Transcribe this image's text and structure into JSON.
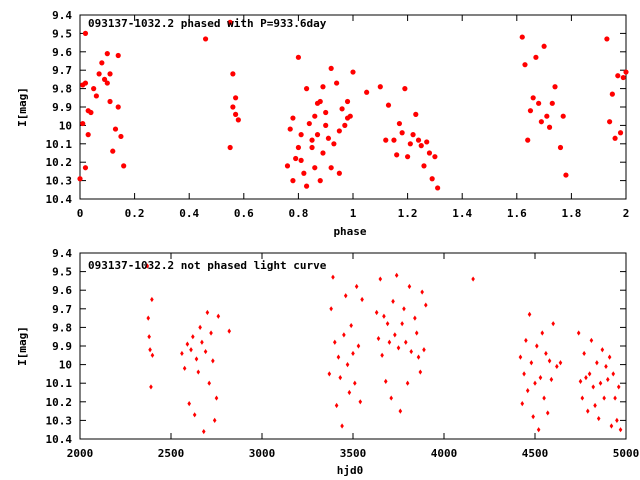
{
  "chart_data": [
    {
      "type": "scatter",
      "title": "093137-1032.2 phased with P=933.6day",
      "xlabel": "phase",
      "ylabel": "I[mag]",
      "xlim": [
        0,
        2
      ],
      "ylim": [
        10.4,
        9.4
      ],
      "y_inverted": true,
      "xticks": [
        "0",
        "0.2",
        "0.4",
        "0.6",
        "0.8",
        "1",
        "1.2",
        "1.4",
        "1.6",
        "1.8",
        "2"
      ],
      "xtick_values": [
        0,
        0.2,
        0.4,
        0.6,
        0.8,
        1,
        1.2,
        1.4,
        1.6,
        1.8,
        2
      ],
      "yticks": [
        "9.4",
        "9.5",
        "9.6",
        "9.7",
        "9.8",
        "9.9",
        "10",
        "10.1",
        "10.2",
        "10.3",
        "10.4"
      ],
      "ytick_values": [
        9.4,
        9.5,
        9.6,
        9.7,
        9.8,
        9.9,
        10.0,
        10.1,
        10.2,
        10.3,
        10.4
      ],
      "grid": false,
      "marker": "filled-circle",
      "color": "#ff0000",
      "x": [
        0.0,
        0.01,
        0.01,
        0.02,
        0.02,
        0.02,
        0.03,
        0.03,
        0.04,
        0.05,
        0.06,
        0.07,
        0.08,
        0.09,
        0.1,
        0.1,
        0.11,
        0.11,
        0.12,
        0.13,
        0.14,
        0.14,
        0.15,
        0.16,
        0.46,
        0.55,
        0.55,
        0.56,
        0.56,
        0.57,
        0.57,
        0.58,
        0.76,
        0.77,
        0.78,
        0.78,
        0.79,
        0.8,
        0.8,
        0.81,
        0.81,
        0.82,
        0.83,
        0.83,
        0.84,
        0.85,
        0.85,
        0.86,
        0.86,
        0.87,
        0.87,
        0.88,
        0.88,
        0.89,
        0.89,
        0.9,
        0.9,
        0.91,
        0.92,
        0.92,
        0.93,
        0.94,
        0.95,
        0.95,
        0.96,
        0.97,
        0.98,
        0.98,
        0.99,
        1.0,
        1.05,
        1.1,
        1.12,
        1.13,
        1.15,
        1.16,
        1.17,
        1.18,
        1.19,
        1.2,
        1.21,
        1.22,
        1.23,
        1.24,
        1.25,
        1.26,
        1.27,
        1.28,
        1.29,
        1.3,
        1.31,
        1.62,
        1.63,
        1.64,
        1.65,
        1.66,
        1.67,
        1.68,
        1.69,
        1.7,
        1.71,
        1.72,
        1.73,
        1.74,
        1.76,
        1.77,
        1.78,
        1.93,
        1.94,
        1.95,
        1.96,
        1.97,
        1.98,
        1.99
      ],
      "y": [
        10.29,
        9.78,
        9.99,
        9.5,
        9.77,
        10.23,
        9.92,
        10.05,
        9.93,
        9.8,
        9.84,
        9.72,
        9.66,
        9.75,
        9.77,
        9.61,
        9.87,
        9.72,
        10.14,
        10.02,
        9.62,
        9.9,
        10.06,
        10.22,
        9.53,
        9.44,
        10.12,
        9.72,
        9.9,
        9.85,
        9.94,
        9.97,
        10.22,
        10.02,
        9.96,
        10.3,
        10.18,
        9.63,
        10.12,
        10.05,
        10.19,
        10.26,
        9.8,
        10.33,
        9.99,
        10.08,
        10.12,
        9.95,
        10.23,
        9.88,
        10.05,
        10.3,
        9.87,
        9.79,
        10.15,
        10.0,
        9.93,
        10.07,
        9.69,
        10.23,
        10.1,
        9.77,
        10.03,
        10.26,
        9.91,
        10.0,
        9.87,
        9.96,
        9.95,
        9.71,
        9.82,
        9.79,
        10.08,
        9.89,
        10.08,
        10.16,
        9.99,
        10.04,
        9.8,
        10.17,
        10.1,
        10.05,
        9.94,
        10.08,
        10.11,
        10.22,
        10.09,
        10.15,
        10.29,
        10.17,
        10.34,
        9.52,
        9.67,
        10.08,
        9.92,
        9.85,
        9.63,
        9.88,
        9.98,
        9.57,
        9.95,
        10.01,
        9.88,
        9.79,
        10.12,
        9.95,
        10.27,
        9.53,
        9.98,
        9.83,
        10.07,
        9.73,
        10.04,
        9.74
      ],
      "x_end": [
        2.0
      ],
      "y_end": [
        9.71
      ]
    },
    {
      "type": "scatter",
      "title": "093137-1032.2 not phased light curve",
      "xlabel": "hjd0",
      "ylabel": "I[mag]",
      "xlim": [
        2000,
        5000
      ],
      "ylim": [
        10.4,
        9.4
      ],
      "y_inverted": true,
      "xticks": [
        "2000",
        "2500",
        "3000",
        "3500",
        "4000",
        "4500",
        "5000"
      ],
      "xtick_values": [
        2000,
        2500,
        3000,
        3500,
        4000,
        4500,
        5000
      ],
      "yticks": [
        "9.4",
        "9.5",
        "9.6",
        "9.7",
        "9.8",
        "9.9",
        "10",
        "10.1",
        "10.2",
        "10.3",
        "10.4"
      ],
      "ytick_values": [
        9.4,
        9.5,
        9.6,
        9.7,
        9.8,
        9.9,
        10.0,
        10.1,
        10.2,
        10.3,
        10.4
      ],
      "grid": false,
      "marker": "filled-diamond",
      "color": "#ff0000",
      "x": [
        2370,
        2375,
        2380,
        2385,
        2390,
        2395,
        2398,
        2560,
        2575,
        2590,
        2600,
        2610,
        2620,
        2630,
        2640,
        2650,
        2660,
        2670,
        2680,
        2690,
        2700,
        2710,
        2720,
        2730,
        2740,
        2750,
        2760,
        2820,
        3370,
        3380,
        3390,
        3400,
        3410,
        3420,
        3430,
        3440,
        3450,
        3460,
        3470,
        3480,
        3490,
        3500,
        3510,
        3520,
        3530,
        3540,
        3550,
        3630,
        3640,
        3650,
        3660,
        3670,
        3680,
        3690,
        3700,
        3710,
        3720,
        3730,
        3740,
        3750,
        3760,
        3770,
        3780,
        3790,
        3800,
        3810,
        3820,
        3840,
        3850,
        3860,
        3870,
        3880,
        3890,
        3900,
        4160,
        4420,
        4430,
        4440,
        4450,
        4460,
        4470,
        4480,
        4490,
        4500,
        4510,
        4520,
        4530,
        4540,
        4550,
        4560,
        4570,
        4580,
        4590,
        4600,
        4620,
        4640,
        4740,
        4750,
        4760,
        4770,
        4780,
        4790,
        4800,
        4810,
        4820,
        4830,
        4840,
        4850,
        4860,
        4870,
        4880,
        4890,
        4900,
        4910,
        4920,
        4930,
        4940,
        4950,
        4960,
        4970
      ],
      "y": [
        9.47,
        9.75,
        9.85,
        9.92,
        10.12,
        9.65,
        9.95,
        9.94,
        10.02,
        9.89,
        10.21,
        9.92,
        9.85,
        10.27,
        9.97,
        10.04,
        9.8,
        9.88,
        10.36,
        9.93,
        9.72,
        10.1,
        9.83,
        9.98,
        10.3,
        10.18,
        9.74,
        9.82,
        10.05,
        9.7,
        9.53,
        9.88,
        10.22,
        9.96,
        10.07,
        10.33,
        9.84,
        9.63,
        10.0,
        10.15,
        9.79,
        9.94,
        10.1,
        9.58,
        9.9,
        10.2,
        9.65,
        9.72,
        9.86,
        9.54,
        9.95,
        9.74,
        10.09,
        9.78,
        9.88,
        10.18,
        9.66,
        9.84,
        9.52,
        9.91,
        10.25,
        9.78,
        9.7,
        9.88,
        10.1,
        9.58,
        9.93,
        9.75,
        9.83,
        9.96,
        10.04,
        9.61,
        9.92,
        9.68,
        9.54,
        9.96,
        10.21,
        10.05,
        9.87,
        10.14,
        9.73,
        9.99,
        10.28,
        10.1,
        9.9,
        10.35,
        10.07,
        9.83,
        10.18,
        9.94,
        10.26,
        9.98,
        10.08,
        9.78,
        10.01,
        9.99,
        9.83,
        10.09,
        10.18,
        9.94,
        10.07,
        10.25,
        10.05,
        9.87,
        10.12,
        10.22,
        9.99,
        10.29,
        10.1,
        9.92,
        10.18,
        10.01,
        10.08,
        9.96,
        10.33,
        10.05,
        10.18,
        10.3,
        10.12,
        10.35
      ]
    }
  ]
}
